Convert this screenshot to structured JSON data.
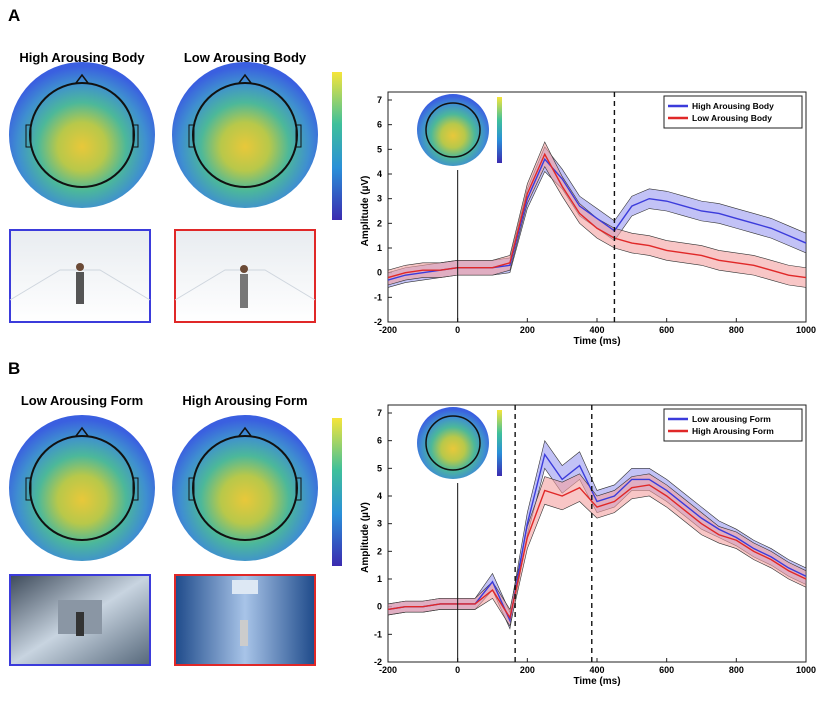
{
  "panels": [
    {
      "label": "A",
      "conditions": [
        "High Arousing Body",
        "Low Arousing Body"
      ]
    },
    {
      "label": "B",
      "conditions": [
        "Low Arousing Form",
        "High Arousing Form"
      ]
    }
  ],
  "chart_data": [
    {
      "type": "line",
      "x_label": "Time (ms)",
      "y_label": "Amplitude (µV)",
      "x": [
        -200,
        -150,
        -100,
        -50,
        0,
        50,
        100,
        150,
        200,
        250,
        300,
        350,
        400,
        450,
        500,
        550,
        600,
        650,
        700,
        750,
        800,
        850,
        900,
        950,
        1000
      ],
      "series": [
        {
          "name": "High Arousing Body",
          "color": "#3b3bdb",
          "band_color": "#9a9af0",
          "values": [
            -0.3,
            -0.1,
            0.0,
            0.1,
            0.2,
            0.2,
            0.2,
            0.3,
            3.0,
            4.6,
            3.8,
            2.7,
            2.2,
            1.7,
            2.7,
            3.0,
            2.9,
            2.7,
            2.5,
            2.4,
            2.2,
            2.0,
            1.8,
            1.5,
            1.2
          ],
          "error": [
            0.3,
            0.3,
            0.3,
            0.3,
            0.3,
            0.3,
            0.3,
            0.3,
            0.4,
            0.5,
            0.4,
            0.4,
            0.4,
            0.4,
            0.4,
            0.4,
            0.4,
            0.4,
            0.4,
            0.4,
            0.4,
            0.4,
            0.4,
            0.4,
            0.4
          ]
        },
        {
          "name": "Low Arousing Body",
          "color": "#e02828",
          "band_color": "#f4a0a0",
          "values": [
            -0.2,
            0.0,
            0.1,
            0.1,
            0.2,
            0.2,
            0.2,
            0.4,
            3.2,
            4.8,
            3.5,
            2.4,
            1.8,
            1.4,
            1.2,
            1.1,
            0.9,
            0.8,
            0.7,
            0.5,
            0.4,
            0.3,
            0.1,
            -0.1,
            -0.2
          ],
          "error": [
            0.3,
            0.3,
            0.3,
            0.3,
            0.3,
            0.3,
            0.3,
            0.3,
            0.4,
            0.5,
            0.4,
            0.4,
            0.4,
            0.4,
            0.4,
            0.4,
            0.4,
            0.4,
            0.4,
            0.4,
            0.4,
            0.4,
            0.4,
            0.4,
            0.4
          ]
        }
      ],
      "vlines": [
        {
          "x": 0,
          "dashed": false
        },
        {
          "x": 450,
          "dashed": true
        }
      ],
      "xlim": [
        -200,
        1000
      ],
      "xticks": [
        -200,
        0,
        200,
        400,
        600,
        800,
        1000
      ],
      "ylim": [
        -2,
        7
      ],
      "yticks": [
        -2,
        -1,
        0,
        1,
        2,
        3,
        4,
        5,
        6,
        7
      ],
      "legend": "top-right"
    },
    {
      "type": "line",
      "x_label": "Time (ms)",
      "y_label": "Amplitude (µV)",
      "x": [
        -200,
        -150,
        -100,
        -50,
        0,
        50,
        100,
        150,
        200,
        250,
        300,
        350,
        400,
        450,
        500,
        550,
        600,
        650,
        700,
        750,
        800,
        850,
        900,
        950,
        1000
      ],
      "series": [
        {
          "name": "Low arousing Form",
          "color": "#3b3bdb",
          "band_color": "#9a9af0",
          "values": [
            -0.1,
            0.0,
            0.0,
            0.1,
            0.1,
            0.1,
            0.9,
            -0.5,
            3.0,
            5.5,
            4.6,
            5.1,
            3.8,
            4.0,
            4.6,
            4.6,
            4.2,
            3.7,
            3.2,
            2.8,
            2.5,
            2.1,
            1.8,
            1.4,
            1.1
          ],
          "error": [
            0.2,
            0.2,
            0.2,
            0.2,
            0.2,
            0.2,
            0.3,
            0.3,
            0.4,
            0.5,
            0.5,
            0.5,
            0.4,
            0.4,
            0.4,
            0.4,
            0.4,
            0.4,
            0.4,
            0.3,
            0.3,
            0.3,
            0.3,
            0.3,
            0.3
          ]
        },
        {
          "name": "High Arousing Form",
          "color": "#e02828",
          "band_color": "#f4a0a0",
          "values": [
            -0.1,
            0.0,
            0.0,
            0.1,
            0.1,
            0.1,
            0.6,
            -0.4,
            2.5,
            4.2,
            4.0,
            4.3,
            3.6,
            3.8,
            4.3,
            4.4,
            4.0,
            3.5,
            3.0,
            2.6,
            2.4,
            2.0,
            1.7,
            1.3,
            1.0
          ],
          "error": [
            0.2,
            0.2,
            0.2,
            0.2,
            0.2,
            0.2,
            0.3,
            0.3,
            0.4,
            0.5,
            0.5,
            0.5,
            0.4,
            0.4,
            0.4,
            0.4,
            0.4,
            0.4,
            0.4,
            0.3,
            0.3,
            0.3,
            0.3,
            0.3,
            0.3
          ]
        }
      ],
      "vlines": [
        {
          "x": 0,
          "dashed": false
        },
        {
          "x": 165,
          "dashed": true
        },
        {
          "x": 385,
          "dashed": true
        }
      ],
      "xlim": [
        -200,
        1000
      ],
      "xticks": [
        -200,
        0,
        200,
        400,
        600,
        800,
        1000
      ],
      "ylim": [
        -2,
        7
      ],
      "yticks": [
        -2,
        -1,
        0,
        1,
        2,
        3,
        4,
        5,
        6,
        7
      ],
      "legend": "top-right"
    }
  ]
}
